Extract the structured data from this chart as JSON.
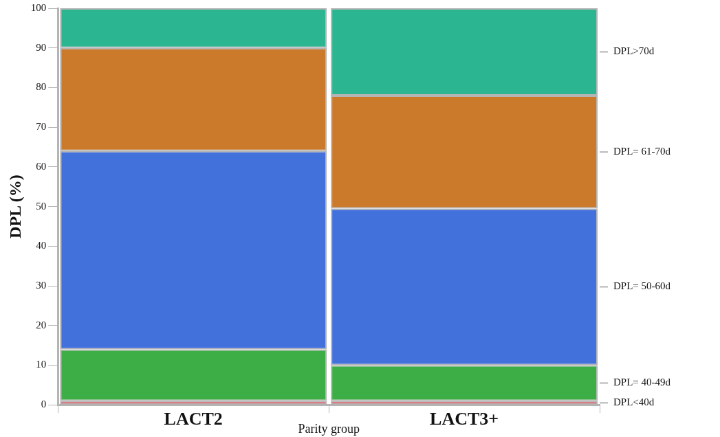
{
  "chart_data": {
    "type": "bar",
    "stacked": true,
    "xlabel": "Parity group",
    "ylabel": "DPL (%)",
    "categories": [
      "LACT2",
      "LACT3+"
    ],
    "series": [
      {
        "name": "DPL<40d",
        "color": "#dc3545",
        "values": [
          1,
          1
        ]
      },
      {
        "name": "DPL= 40-49d",
        "color": "#3dae46",
        "values": [
          13,
          9
        ]
      },
      {
        "name": "DPL= 50-60d",
        "color": "#4371dc",
        "values": [
          50,
          39.5
        ]
      },
      {
        "name": "DPL= 61-70d",
        "color": "#cb792a",
        "values": [
          26,
          28.5
        ]
      },
      {
        "name": "DPL>70d",
        "color": "#2bb590",
        "values": [
          10,
          22
        ]
      }
    ],
    "ylim": [
      0,
      100
    ],
    "yticks": [
      0,
      10,
      20,
      30,
      40,
      50,
      60,
      70,
      80,
      90,
      100
    ],
    "grid": false,
    "legend": "right"
  }
}
